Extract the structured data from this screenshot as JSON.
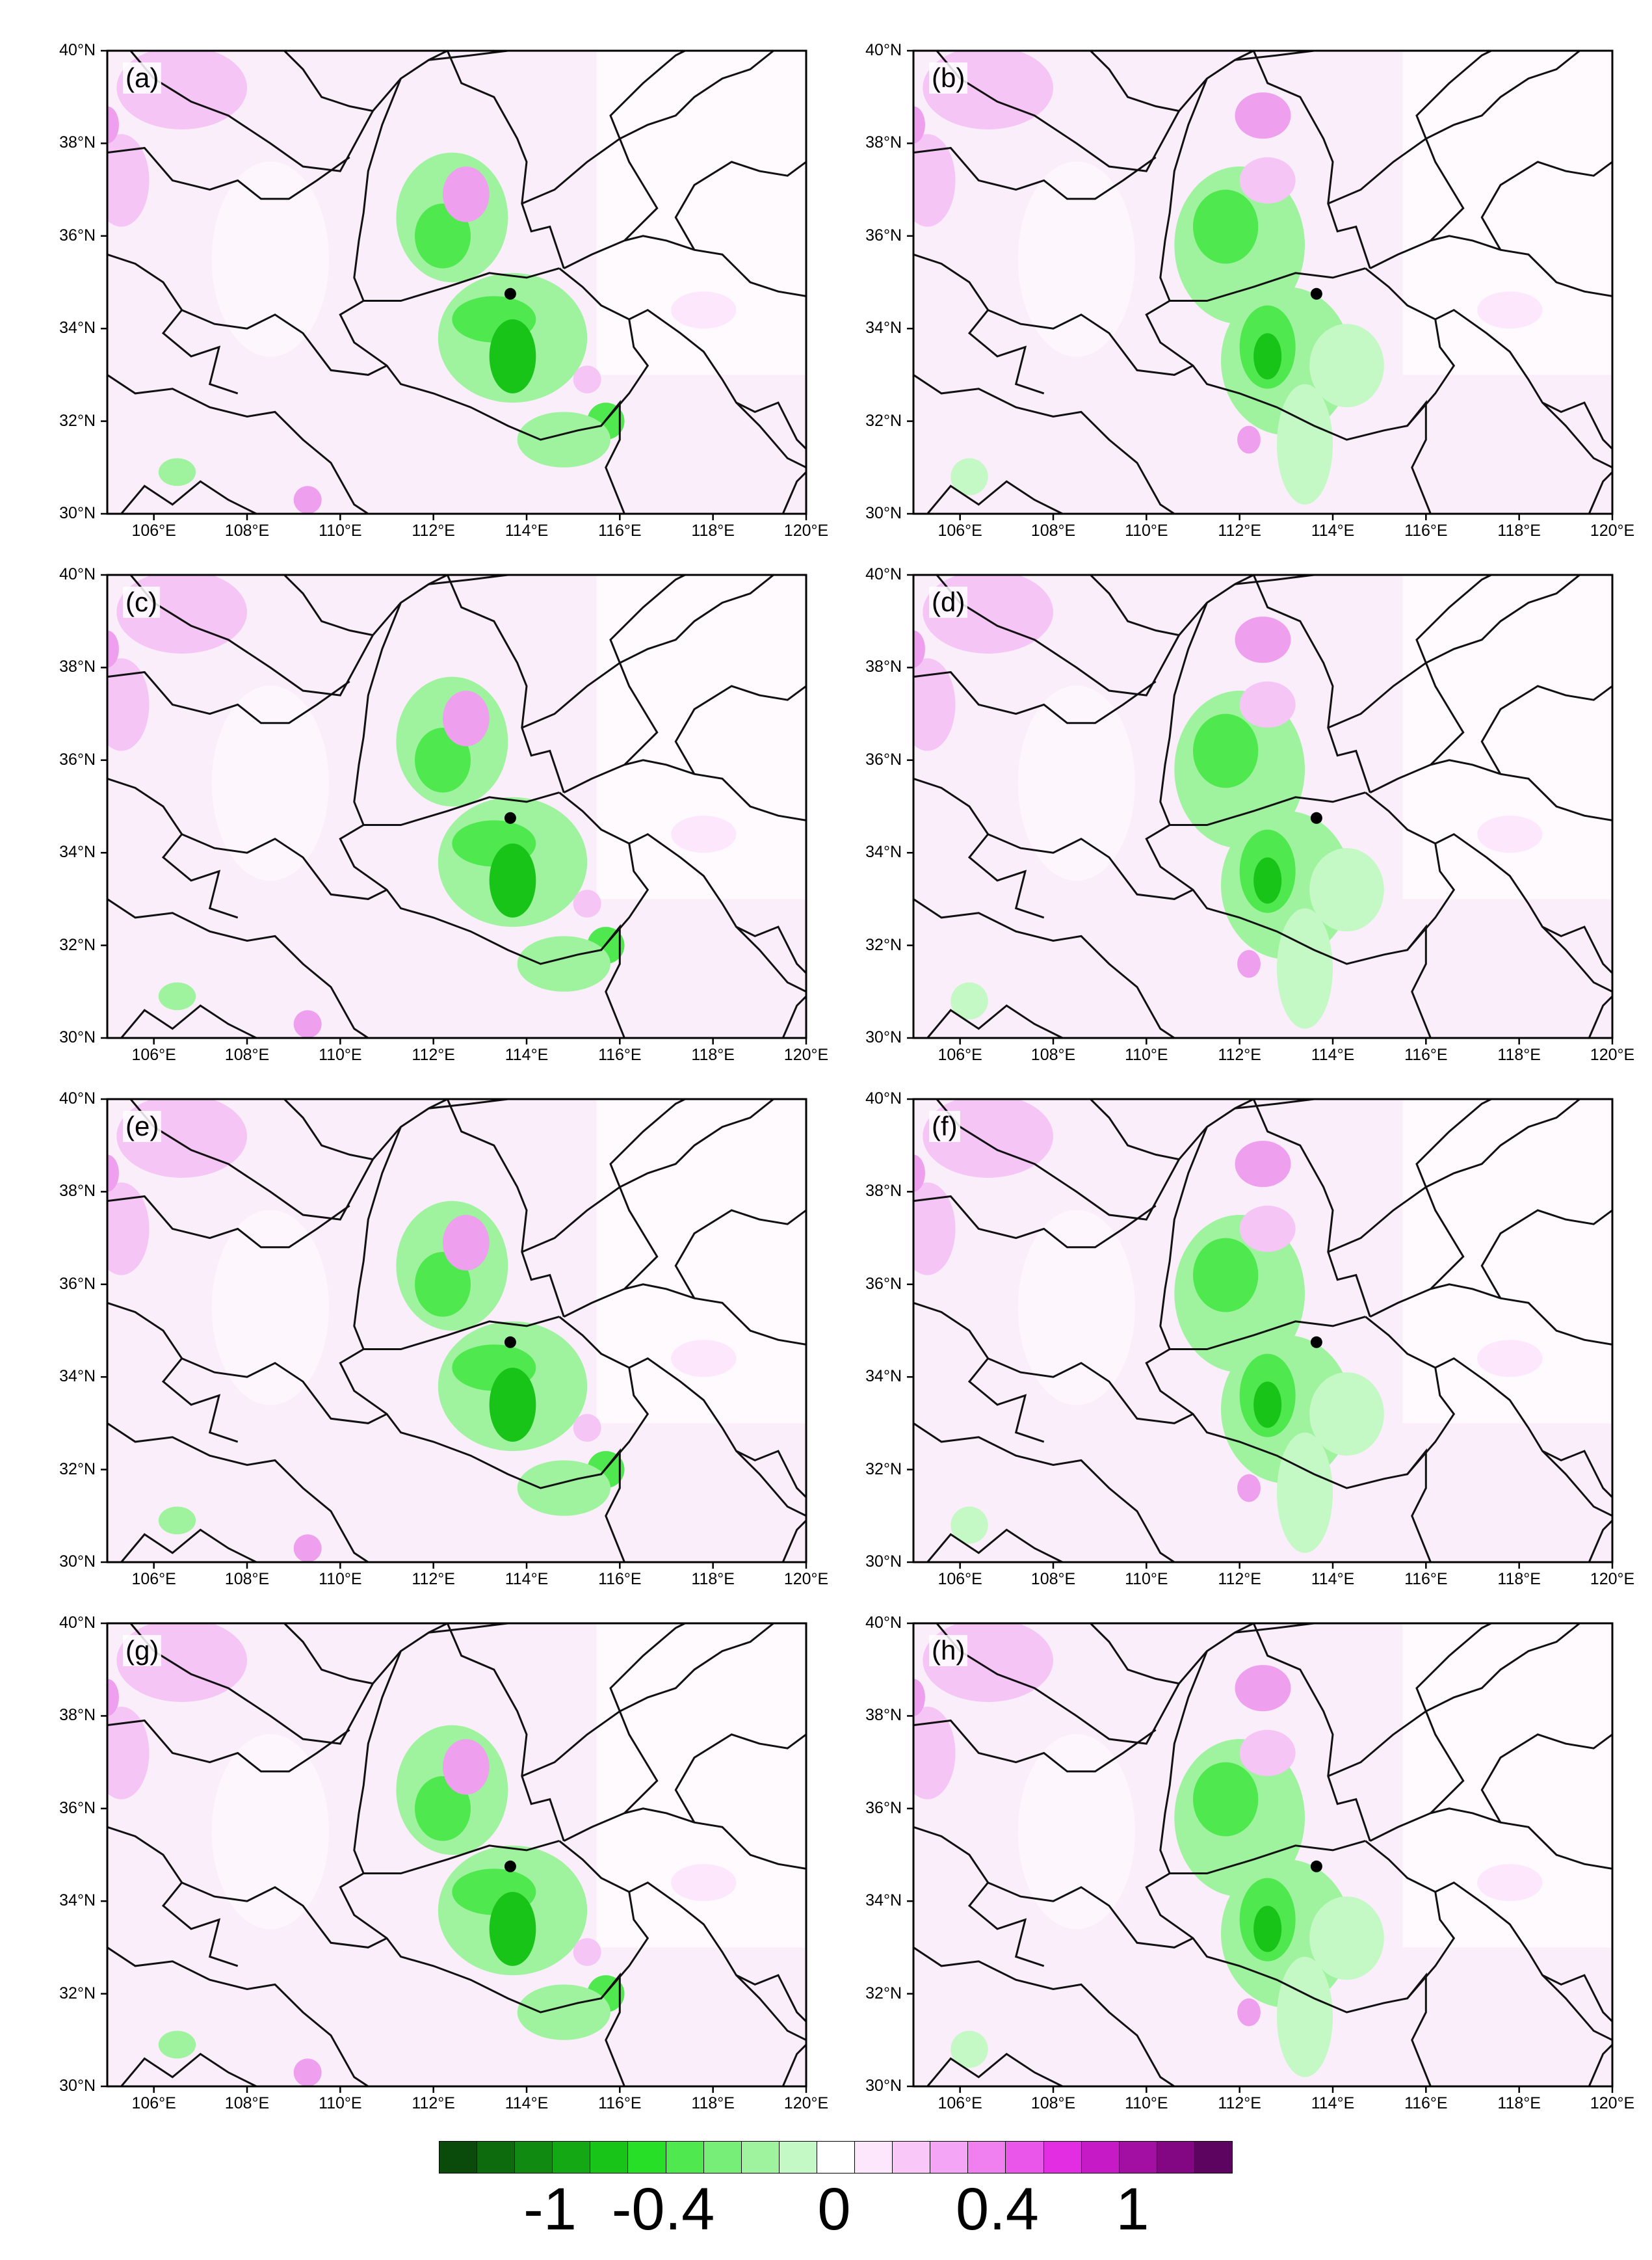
{
  "figure": {
    "panels": [
      {
        "label": "(a)"
      },
      {
        "label": "(b)"
      },
      {
        "label": "(c)"
      },
      {
        "label": "(d)"
      },
      {
        "label": "(e)"
      },
      {
        "label": "(f)"
      },
      {
        "label": "(g)"
      },
      {
        "label": "(h)"
      }
    ],
    "lat_ticks": [
      "40°N",
      "38°N",
      "36°N",
      "34°N",
      "32°N",
      "30°N"
    ],
    "lon_ticks": [
      "106°E",
      "108°E",
      "110°E",
      "112°E",
      "114°E",
      "116°E",
      "118°E",
      "120°E"
    ],
    "colorbar": {
      "tick_labels": [
        "-1",
        "-0.4",
        "0",
        "0.4",
        "1"
      ],
      "colors": [
        "#0a4a0a",
        "#0d6b0d",
        "#118a11",
        "#14a814",
        "#19c419",
        "#27df27",
        "#4fe84f",
        "#77ee77",
        "#9ff39f",
        "#c4f8c4",
        "#ffffff",
        "#fde7fd",
        "#f9c8f9",
        "#f5a5f5",
        "#f07ff0",
        "#ea55ea",
        "#e22de2",
        "#c71ac7",
        "#a30fa3",
        "#830783",
        "#5d0360"
      ]
    }
  }
}
